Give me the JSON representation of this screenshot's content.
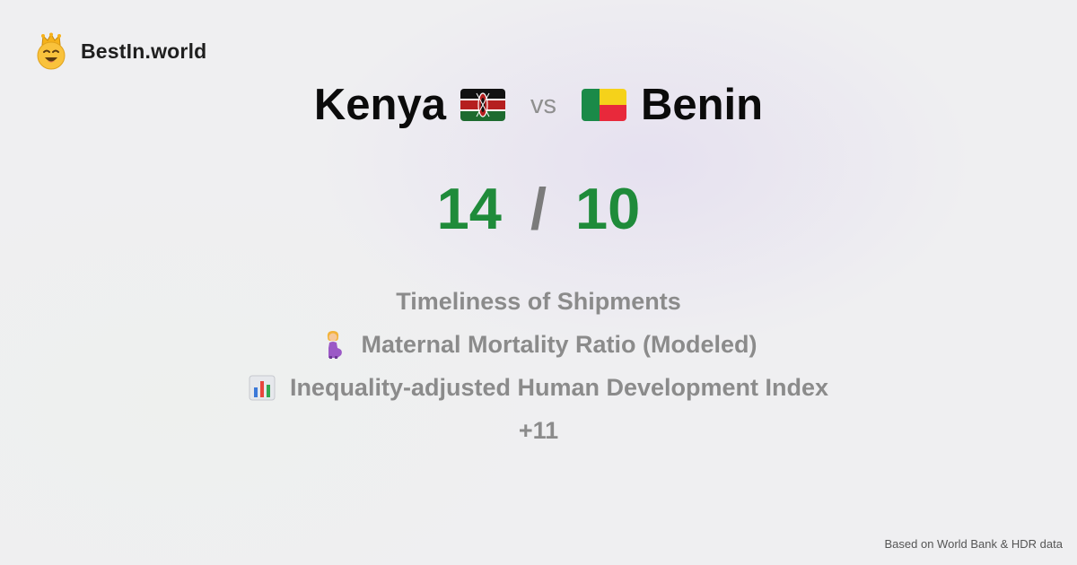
{
  "brand": {
    "name": "BestIn.world",
    "logo_icon": "crowned-smiley-icon"
  },
  "comparison": {
    "left_country": "Kenya",
    "left_flag_icon": "kenya-flag-icon",
    "vs_label": "vs",
    "right_country": "Benin",
    "right_flag_icon": "benin-flag-icon"
  },
  "scores": {
    "left": "14",
    "separator": "/",
    "right": "10",
    "color": "#1f8b3a"
  },
  "metrics": [
    {
      "label": "Timeliness of Shipments",
      "icon": ""
    },
    {
      "label": "Maternal Mortality Ratio (Modeled)",
      "icon": "pregnant-woman-icon"
    },
    {
      "label": "Inequality-adjusted Human Development Index",
      "icon": "bar-chart-icon"
    }
  ],
  "more_count": "+11",
  "footer": {
    "source_text": "Based on World Bank & HDR data"
  }
}
